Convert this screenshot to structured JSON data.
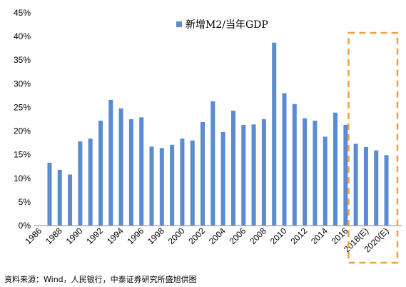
{
  "chart_data": {
    "type": "bar",
    "categories": [
      "1986",
      "1987",
      "1988",
      "1989",
      "1990",
      "1991",
      "1992",
      "1993",
      "1994",
      "1995",
      "1996",
      "1997",
      "1998",
      "1999",
      "2000",
      "2001",
      "2002",
      "2003",
      "2004",
      "2005",
      "2006",
      "2007",
      "2008",
      "2009",
      "2010",
      "2011",
      "2012",
      "2013",
      "2014",
      "2015",
      "2016",
      "2017",
      "2018(E)",
      "2019",
      "2020(E)",
      "2021"
    ],
    "tick_labels": [
      "1986",
      "1988",
      "1990",
      "1992",
      "1994",
      "1996",
      "1998",
      "2000",
      "2002",
      "2004",
      "2006",
      "2008",
      "2010",
      "2012",
      "2014",
      "2016",
      "2018(E)",
      "2020(E)"
    ],
    "series": [
      {
        "name": "新增M2/当年GDP",
        "values": [
          null,
          13.3,
          11.8,
          10.8,
          17.8,
          18.4,
          22.2,
          26.6,
          24.8,
          22.5,
          22.9,
          16.7,
          16.4,
          17.1,
          18.4,
          18.0,
          21.9,
          26.3,
          19.8,
          24.3,
          21.3,
          21.4,
          22.5,
          38.7,
          28.0,
          25.7,
          22.7,
          22.2,
          18.8,
          23.9,
          21.3,
          17.3,
          16.6,
          15.9,
          14.9,
          null
        ]
      }
    ],
    "yticks": [
      "0%",
      "5%",
      "10%",
      "15%",
      "20%",
      "25%",
      "30%",
      "35%",
      "40%",
      "45%"
    ],
    "ylim": [
      0,
      45
    ],
    "y_unit": "%",
    "legend_position": "top",
    "bar_color": "#5B8BD0",
    "highlight_box_color": "#F0A040"
  },
  "source": "资料来源：Wind，人民银行，中泰证券研究所盛旭供图"
}
